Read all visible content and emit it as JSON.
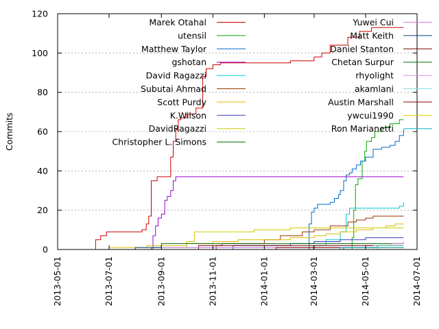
{
  "chart_data": {
    "type": "line",
    "step": true,
    "title": "",
    "xlabel": "",
    "ylabel": "Commits",
    "xlim": [
      "2013-05-01",
      "2014-07-01"
    ],
    "ylim": [
      0,
      120
    ],
    "x_ticks": [
      "2013-05-01",
      "2013-07-01",
      "2013-09-01",
      "2013-11-01",
      "2014-01-01",
      "2014-03-01",
      "2014-05-01",
      "2014-07-01"
    ],
    "y_ticks": [
      0,
      20,
      40,
      60,
      80,
      100,
      120
    ],
    "grid": {
      "y": true,
      "x": false,
      "style": "dotted"
    },
    "legend": "inside, two columns, top",
    "series": [
      {
        "name": "Marek Otahal",
        "color": "#cc0000",
        "points": [
          [
            "2013-06-14",
            0
          ],
          [
            "2013-06-15",
            5
          ],
          [
            "2013-06-21",
            7
          ],
          [
            "2013-06-28",
            9
          ],
          [
            "2013-08-09",
            10
          ],
          [
            "2013-08-14",
            13
          ],
          [
            "2013-08-17",
            17
          ],
          [
            "2013-08-20",
            35
          ],
          [
            "2013-08-27",
            37
          ],
          [
            "2013-09-10",
            37
          ],
          [
            "2013-09-12",
            47
          ],
          [
            "2013-09-15",
            55
          ],
          [
            "2013-09-18",
            61
          ],
          [
            "2013-09-21",
            66
          ],
          [
            "2013-09-24",
            67
          ],
          [
            "2013-10-01",
            69
          ],
          [
            "2013-10-12",
            72
          ],
          [
            "2013-10-20",
            88
          ],
          [
            "2013-10-24",
            92
          ],
          [
            "2013-11-01",
            94
          ],
          [
            "2013-11-10",
            95
          ],
          [
            "2014-02-01",
            96
          ],
          [
            "2014-03-01",
            98
          ],
          [
            "2014-03-10",
            100
          ],
          [
            "2014-03-20",
            104
          ],
          [
            "2014-04-10",
            108
          ],
          [
            "2014-04-24",
            111
          ],
          [
            "2014-05-08",
            113
          ],
          [
            "2014-06-15",
            113
          ]
        ]
      },
      {
        "name": "utensil",
        "color": "#00aa00",
        "points": [
          [
            "2014-04-10",
            0
          ],
          [
            "2014-04-15",
            6
          ],
          [
            "2014-04-17",
            20
          ],
          [
            "2014-04-19",
            33
          ],
          [
            "2014-04-22",
            36
          ],
          [
            "2014-04-27",
            45
          ],
          [
            "2014-04-30",
            50
          ],
          [
            "2014-05-02",
            55
          ],
          [
            "2014-05-08",
            57
          ],
          [
            "2014-05-12",
            60
          ],
          [
            "2014-05-20",
            62
          ],
          [
            "2014-05-30",
            64
          ],
          [
            "2014-06-10",
            66
          ],
          [
            "2014-06-15",
            66
          ]
        ]
      },
      {
        "name": "Matthew Taylor",
        "color": "#0066cc",
        "points": [
          [
            "2014-02-20",
            0
          ],
          [
            "2014-02-23",
            13
          ],
          [
            "2014-02-26",
            19
          ],
          [
            "2014-03-01",
            21
          ],
          [
            "2014-03-05",
            23
          ],
          [
            "2014-03-20",
            24
          ],
          [
            "2014-03-25",
            26
          ],
          [
            "2014-03-30",
            28
          ],
          [
            "2014-04-01",
            30
          ],
          [
            "2014-04-05",
            35
          ],
          [
            "2014-04-08",
            38
          ],
          [
            "2014-04-12",
            39
          ],
          [
            "2014-04-15",
            41
          ],
          [
            "2014-04-20",
            43
          ],
          [
            "2014-04-25",
            45
          ],
          [
            "2014-05-01",
            47
          ],
          [
            "2014-05-10",
            51
          ],
          [
            "2014-05-20",
            52
          ],
          [
            "2014-05-30",
            53
          ],
          [
            "2014-06-05",
            55
          ],
          [
            "2014-06-10",
            58
          ],
          [
            "2014-06-15",
            61
          ]
        ]
      },
      {
        "name": "gshotan",
        "color": "#9900cc",
        "points": [
          [
            "2013-08-20",
            0
          ],
          [
            "2013-08-22",
            7
          ],
          [
            "2013-08-25",
            12
          ],
          [
            "2013-08-28",
            16
          ],
          [
            "2013-09-01",
            18
          ],
          [
            "2013-09-05",
            25
          ],
          [
            "2013-09-08",
            27
          ],
          [
            "2013-09-12",
            30
          ],
          [
            "2013-09-15",
            35
          ],
          [
            "2013-09-18",
            37
          ],
          [
            "2014-06-15",
            37
          ]
        ]
      },
      {
        "name": "David Ragazzi",
        "color": "#00cccc",
        "points": [
          [
            "2014-02-25",
            0
          ],
          [
            "2014-02-28",
            2
          ],
          [
            "2014-03-15",
            5
          ],
          [
            "2014-04-01",
            9
          ],
          [
            "2014-04-08",
            18
          ],
          [
            "2014-04-12",
            21
          ],
          [
            "2014-06-10",
            22
          ],
          [
            "2014-06-15",
            24
          ]
        ]
      },
      {
        "name": "Subutai Ahmad",
        "color": "#993300",
        "points": [
          [
            "2013-06-10",
            0
          ],
          [
            "2013-11-05",
            2
          ],
          [
            "2013-11-12",
            3
          ],
          [
            "2014-01-01",
            5
          ],
          [
            "2014-01-20",
            7
          ],
          [
            "2014-02-15",
            9
          ],
          [
            "2014-03-01",
            10
          ],
          [
            "2014-03-20",
            12
          ],
          [
            "2014-04-10",
            14
          ],
          [
            "2014-04-20",
            15
          ],
          [
            "2014-05-01",
            16
          ],
          [
            "2014-05-10",
            17
          ],
          [
            "2014-06-15",
            17
          ]
        ]
      },
      {
        "name": "Scott Purdy",
        "color": "#ddbb00",
        "points": [
          [
            "2013-06-15",
            0
          ],
          [
            "2013-07-01",
            1
          ],
          [
            "2013-08-15",
            2
          ],
          [
            "2013-10-01",
            3
          ],
          [
            "2013-11-01",
            4
          ],
          [
            "2013-12-01",
            5
          ],
          [
            "2014-02-01",
            6
          ],
          [
            "2014-03-01",
            7
          ],
          [
            "2014-03-15",
            8
          ],
          [
            "2014-04-01",
            9
          ],
          [
            "2014-04-20",
            10
          ],
          [
            "2014-05-10",
            11
          ],
          [
            "2014-05-25",
            12
          ],
          [
            "2014-06-05",
            13
          ],
          [
            "2014-06-15",
            13
          ]
        ]
      },
      {
        "name": "K.Wilson",
        "color": "#3333cc",
        "points": [
          [
            "2013-11-20",
            0
          ],
          [
            "2013-11-25",
            2
          ],
          [
            "2014-02-01",
            3
          ],
          [
            "2014-03-01",
            4
          ],
          [
            "2014-04-01",
            5
          ],
          [
            "2014-05-01",
            6
          ],
          [
            "2014-06-15",
            6
          ]
        ]
      },
      {
        "name": "DavidRagazzi",
        "color": "#cccc00",
        "points": [
          [
            "2013-06-20",
            0
          ],
          [
            "2013-08-01",
            1
          ],
          [
            "2013-10-01",
            4
          ],
          [
            "2013-10-10",
            9
          ],
          [
            "2013-12-20",
            10
          ],
          [
            "2014-02-01",
            11
          ],
          [
            "2014-04-01",
            11
          ],
          [
            "2014-06-15",
            11
          ]
        ]
      },
      {
        "name": "Christopher L. Simons",
        "color": "#006600",
        "points": [
          [
            "2013-06-01",
            0
          ],
          [
            "2013-08-20",
            1
          ],
          [
            "2013-09-01",
            3
          ],
          [
            "2013-09-15",
            3
          ],
          [
            "2014-06-15",
            3
          ]
        ]
      },
      {
        "name": "Yuwei Cui",
        "color": "#dd77dd",
        "points": [
          [
            "2014-03-01",
            0
          ],
          [
            "2014-04-01",
            1
          ],
          [
            "2014-05-01",
            2
          ],
          [
            "2014-06-01",
            3
          ],
          [
            "2014-06-15",
            4
          ]
        ]
      },
      {
        "name": "Matt Keith",
        "color": "#004488",
        "points": [
          [
            "2013-07-20",
            0
          ],
          [
            "2013-08-01",
            1
          ],
          [
            "2014-04-01",
            1
          ],
          [
            "2014-06-15",
            1
          ]
        ]
      },
      {
        "name": "Daniel Stanton",
        "color": "#770000",
        "points": [
          [
            "2013-10-01",
            0
          ],
          [
            "2013-10-15",
            2
          ],
          [
            "2014-06-15",
            2
          ]
        ]
      },
      {
        "name": "Chetan Surpur",
        "color": "#007700",
        "points": [
          [
            "2014-03-20",
            0
          ],
          [
            "2014-04-05",
            1
          ],
          [
            "2014-05-15",
            2
          ],
          [
            "2014-06-15",
            2
          ]
        ]
      },
      {
        "name": "rhyolight",
        "color": "#dd88ee",
        "points": [
          [
            "2013-07-01",
            0
          ],
          [
            "2013-09-01",
            1
          ],
          [
            "2014-01-01",
            1
          ],
          [
            "2014-06-15",
            1
          ]
        ]
      },
      {
        "name": "akamlani",
        "color": "#88dddd",
        "points": [
          [
            "2014-05-01",
            0
          ],
          [
            "2014-05-10",
            2
          ],
          [
            "2014-06-15",
            2
          ]
        ]
      },
      {
        "name": "Austin Marshall",
        "color": "#880000",
        "points": [
          [
            "2013-12-01",
            0
          ],
          [
            "2014-01-15",
            1
          ],
          [
            "2014-06-15",
            1
          ]
        ]
      },
      {
        "name": "ywcui1990",
        "color": "#eecc00",
        "points": [
          [
            "2014-03-01",
            0
          ],
          [
            "2014-05-15",
            1
          ],
          [
            "2014-06-15",
            1
          ]
        ]
      },
      {
        "name": "Ron Marianetti",
        "color": "#00bbcc",
        "points": [
          [
            "2014-01-01",
            0
          ],
          [
            "2014-04-01",
            1
          ],
          [
            "2014-06-15",
            1
          ]
        ]
      }
    ]
  }
}
